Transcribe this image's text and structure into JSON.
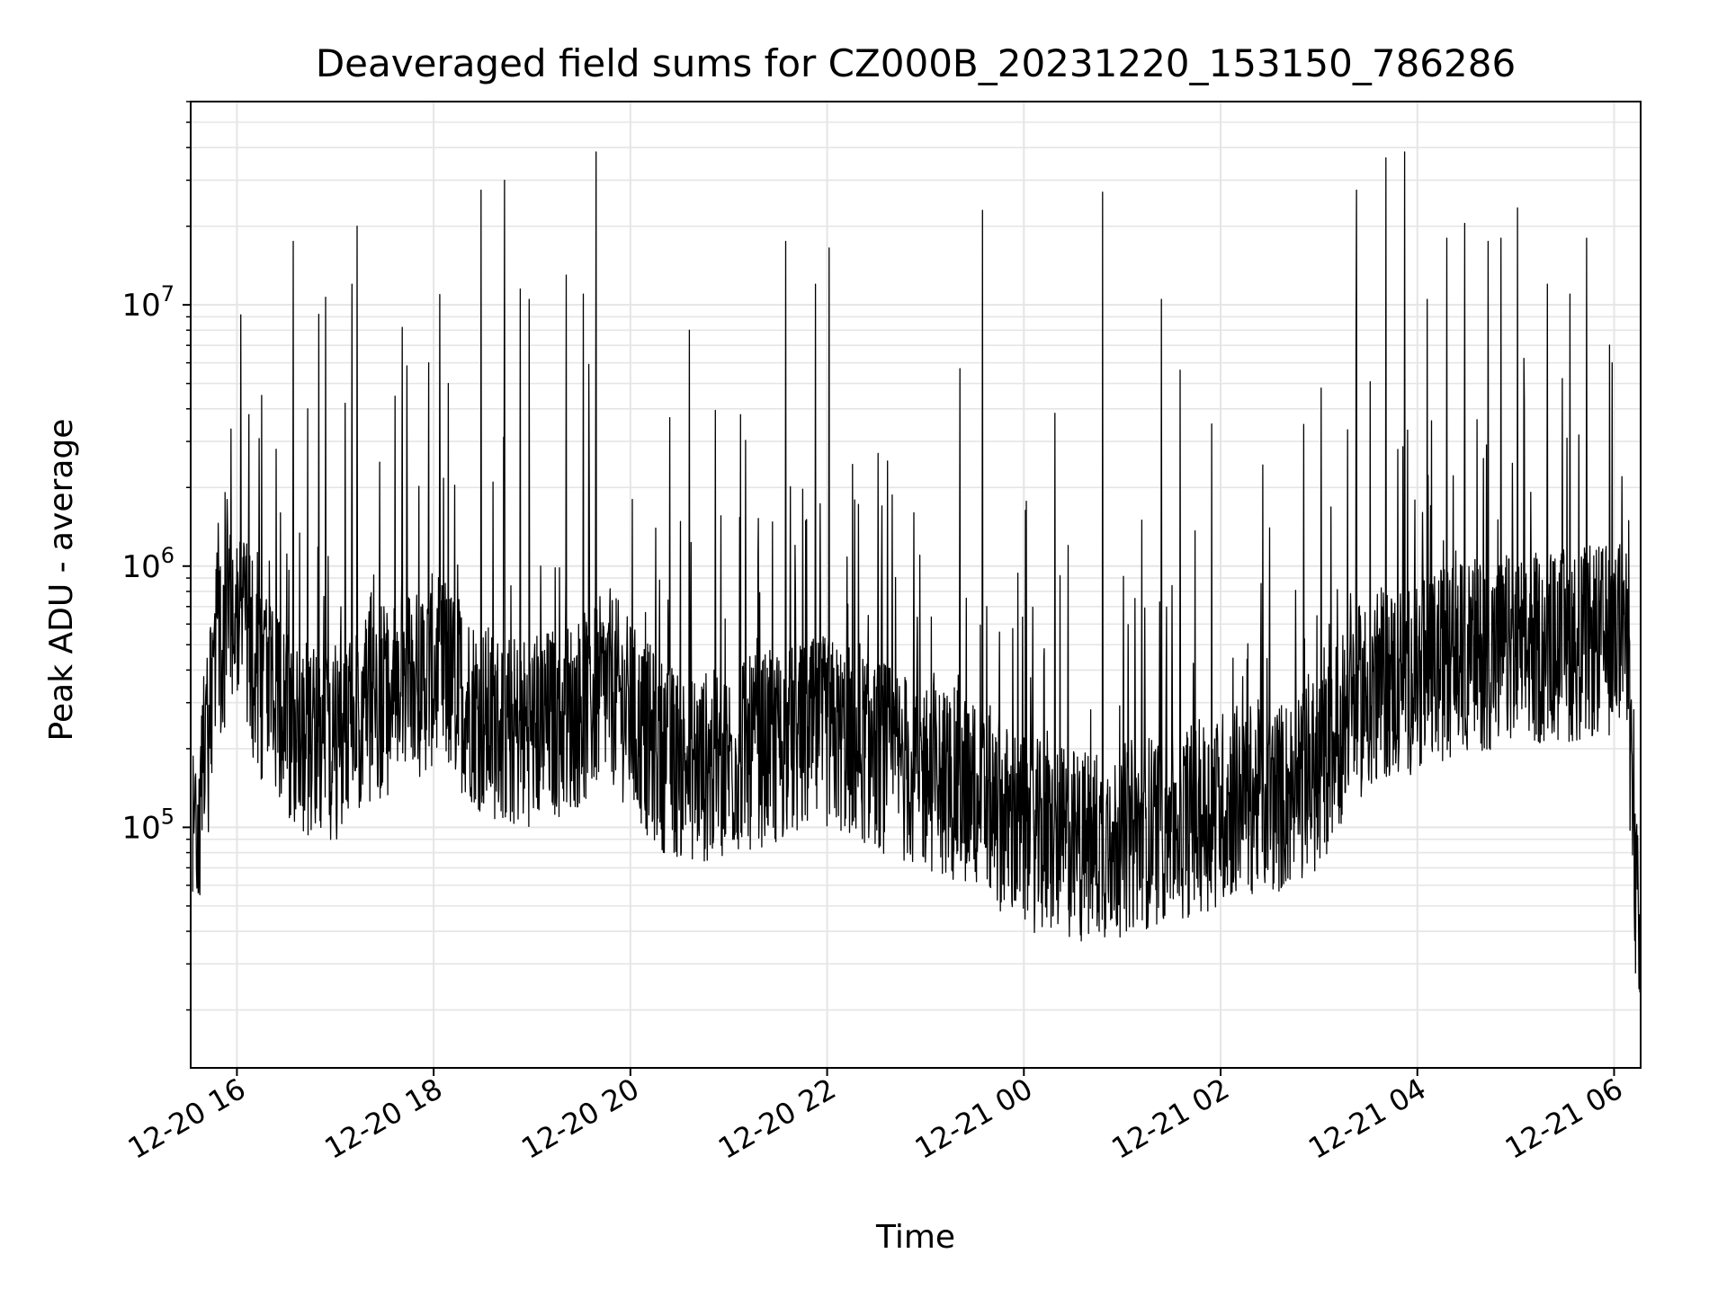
{
  "chart_data": {
    "type": "line",
    "title": "Deaveraged field sums for CZ000B_20231220_153150_786286",
    "xlabel": "Time",
    "ylabel": "Peak ADU - average",
    "yscale": "log",
    "ylim": [
      12000,
      60000000
    ],
    "xlim_hours": [
      15.53,
      30.27
    ],
    "x_ticks": [
      {
        "value": 16,
        "label": "12-20 16"
      },
      {
        "value": 18,
        "label": "12-20 18"
      },
      {
        "value": 20,
        "label": "12-20 20"
      },
      {
        "value": 22,
        "label": "12-20 22"
      },
      {
        "value": 24,
        "label": "12-21 00"
      },
      {
        "value": 26,
        "label": "12-21 02"
      },
      {
        "value": 28,
        "label": "12-21 04"
      },
      {
        "value": 30,
        "label": "12-21 06"
      }
    ],
    "y_ticks": [
      {
        "value": 100000,
        "base": "10",
        "exp": "5"
      },
      {
        "value": 1000000,
        "base": "10",
        "exp": "6"
      },
      {
        "value": 10000000,
        "base": "10",
        "exp": "7"
      }
    ],
    "grid": true,
    "line_color": "#000000",
    "grid_color": "#e5e5e5",
    "series": [
      {
        "baseline_profile": [
          [
            15.55,
            80000
          ],
          [
            15.7,
            200000
          ],
          [
            15.8,
            500000
          ],
          [
            16.0,
            700000
          ],
          [
            16.2,
            380000
          ],
          [
            16.5,
            250000
          ],
          [
            16.8,
            200000
          ],
          [
            17.0,
            210000
          ],
          [
            17.3,
            280000
          ],
          [
            17.7,
            320000
          ],
          [
            18.0,
            400000
          ],
          [
            18.2,
            350000
          ],
          [
            18.5,
            260000
          ],
          [
            18.8,
            230000
          ],
          [
            19.2,
            250000
          ],
          [
            19.5,
            280000
          ],
          [
            19.8,
            350000
          ],
          [
            20.1,
            230000
          ],
          [
            20.4,
            180000
          ],
          [
            20.8,
            170000
          ],
          [
            21.2,
            190000
          ],
          [
            21.6,
            210000
          ],
          [
            22.0,
            230000
          ],
          [
            22.4,
            200000
          ],
          [
            22.8,
            170000
          ],
          [
            23.2,
            150000
          ],
          [
            23.6,
            130000
          ],
          [
            23.9,
            100000
          ],
          [
            24.2,
            90000
          ],
          [
            24.6,
            85000
          ],
          [
            25.0,
            90000
          ],
          [
            25.4,
            100000
          ],
          [
            25.8,
            110000
          ],
          [
            26.2,
            130000
          ],
          [
            26.6,
            130000
          ],
          [
            27.0,
            160000
          ],
          [
            27.3,
            280000
          ],
          [
            27.6,
            350000
          ],
          [
            28.0,
            380000
          ],
          [
            28.4,
            450000
          ],
          [
            28.8,
            470000
          ],
          [
            29.2,
            480000
          ],
          [
            29.6,
            500000
          ],
          [
            30.0,
            520000
          ],
          [
            30.1,
            700000
          ],
          [
            30.15,
            300000
          ],
          [
            30.2,
            80000
          ],
          [
            30.27,
            25000
          ]
        ],
        "spikes": [
          [
            15.9,
            1800000
          ],
          [
            16.12,
            3800000
          ],
          [
            16.25,
            4500000
          ],
          [
            16.4,
            2800000
          ],
          [
            16.57,
            17500000
          ],
          [
            16.72,
            4000000
          ],
          [
            16.83,
            9200000
          ],
          [
            16.9,
            10700000
          ],
          [
            17.1,
            4200000
          ],
          [
            17.17,
            12000000
          ],
          [
            17.22,
            20000000
          ],
          [
            17.45,
            2500000
          ],
          [
            17.68,
            8200000
          ],
          [
            17.95,
            6000000
          ],
          [
            18.15,
            5000000
          ],
          [
            18.48,
            27500000
          ],
          [
            18.72,
            30000000
          ],
          [
            18.88,
            11500000
          ],
          [
            18.97,
            10500000
          ],
          [
            19.35,
            13000000
          ],
          [
            19.52,
            11000000
          ],
          [
            19.65,
            38500000
          ],
          [
            20.02,
            1800000
          ],
          [
            20.4,
            3700000
          ],
          [
            20.6,
            8000000
          ],
          [
            21.12,
            3800000
          ],
          [
            21.58,
            17500000
          ],
          [
            21.88,
            12000000
          ],
          [
            22.02,
            16500000
          ],
          [
            22.52,
            2700000
          ],
          [
            22.88,
            1600000
          ],
          [
            23.35,
            5700000
          ],
          [
            23.58,
            23000000
          ],
          [
            24.45,
            1200000
          ],
          [
            24.8,
            27000000
          ],
          [
            25.2,
            1500000
          ],
          [
            25.4,
            10500000
          ],
          [
            25.91,
            3500000
          ],
          [
            26.5,
            1400000
          ],
          [
            27.02,
            4800000
          ],
          [
            27.38,
            27500000
          ],
          [
            27.68,
            36500000
          ],
          [
            27.87,
            38500000
          ],
          [
            28.1,
            10500000
          ],
          [
            28.3,
            18000000
          ],
          [
            28.48,
            20500000
          ],
          [
            28.72,
            17500000
          ],
          [
            28.85,
            18000000
          ],
          [
            29.02,
            23500000
          ],
          [
            29.32,
            12000000
          ],
          [
            29.55,
            11000000
          ],
          [
            29.72,
            18000000
          ],
          [
            29.98,
            6000000
          ],
          [
            30.08,
            2200000
          ]
        ]
      }
    ]
  }
}
